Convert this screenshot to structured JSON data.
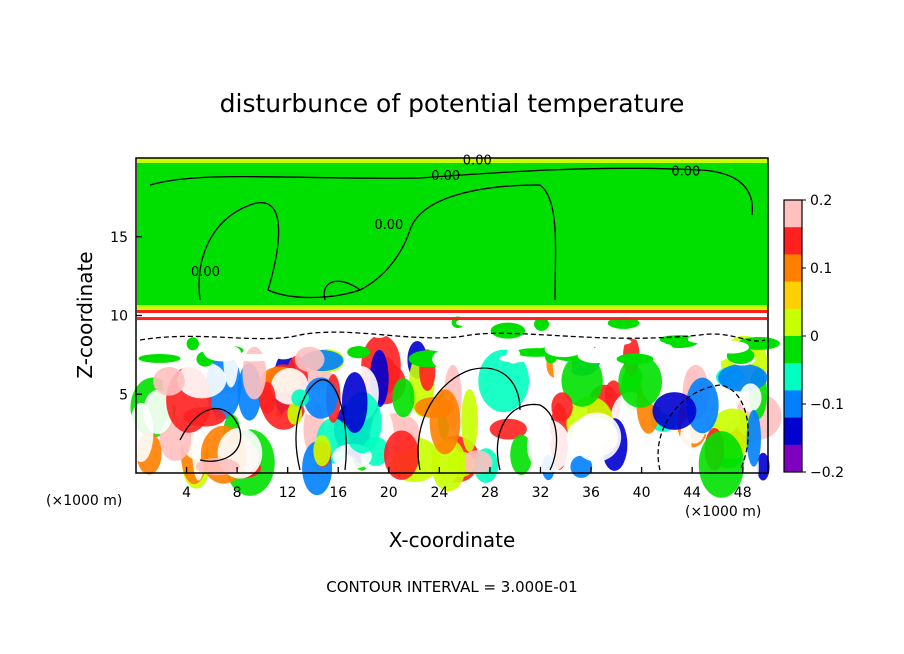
{
  "chart_data": {
    "type": "heatmap",
    "title": "disturbunce of potential temperature",
    "xlabel": "X-coordinate",
    "ylabel": "Z-coordinate",
    "x_unit": "(×1000 m)",
    "x_ticks": [
      "4",
      "8",
      "12",
      "16",
      "20",
      "24",
      "28",
      "32",
      "36",
      "40",
      "44",
      "48"
    ],
    "y_ticks": [
      "5",
      "10",
      "15"
    ],
    "xlim": [
      0,
      50
    ],
    "ylim": [
      0,
      20
    ],
    "colorbar": {
      "ticks": [
        "0.2",
        "0.1",
        "0",
        "−0.1",
        "−0.2"
      ],
      "range": [
        -0.2,
        0.2
      ],
      "colors": [
        "#ffc0c0",
        "#ff2020",
        "#ff8000",
        "#ffd000",
        "#c8ff00",
        "#00e000",
        "#00ffc0",
        "#0080ff",
        "#0000d0",
        "#8000c0"
      ]
    },
    "contour_labels": [
      {
        "text": "0.00",
        "x": 27,
        "y": 19.6
      },
      {
        "text": "0.00",
        "x": 24.5,
        "y": 18.6
      },
      {
        "text": "0.00",
        "x": 43.5,
        "y": 18.9
      },
      {
        "text": "0.00",
        "x": 5.5,
        "y": 12.5
      },
      {
        "text": "0.00",
        "x": 20,
        "y": 15.5
      }
    ],
    "footer": "CONTOUR INTERVAL = 3.000E-01"
  }
}
